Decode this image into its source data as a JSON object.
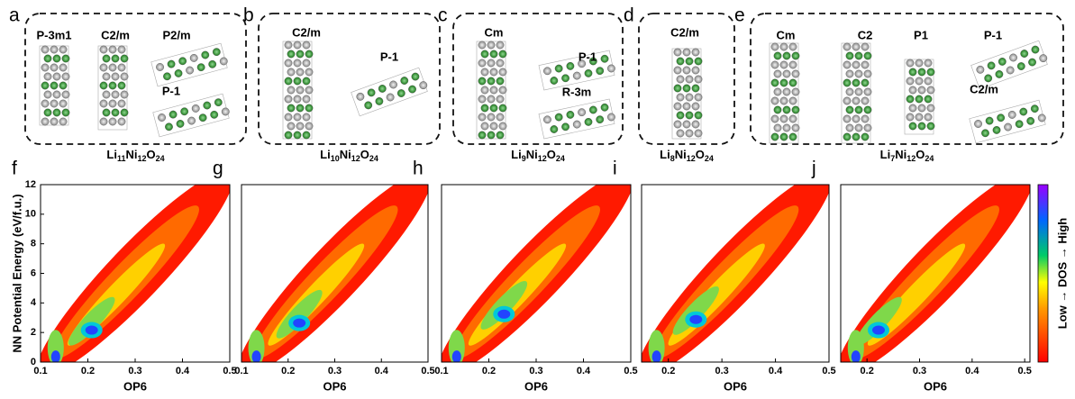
{
  "panels": [
    {
      "letter": "a",
      "structures": [
        "P-3m1",
        "C2/m",
        "P2/m",
        "P-1"
      ],
      "formula": [
        "Li",
        "11",
        "Ni",
        "12",
        "O",
        "24"
      ]
    },
    {
      "letter": "b",
      "structures": [
        "C2/m",
        "P-1"
      ],
      "formula": [
        "Li",
        "10",
        "Ni",
        "12",
        "O",
        "24"
      ]
    },
    {
      "letter": "c",
      "structures": [
        "Cm",
        "P-1",
        "R-3m"
      ],
      "formula": [
        "Li",
        "9",
        "Ni",
        "12",
        "O",
        "24"
      ]
    },
    {
      "letter": "d",
      "structures": [
        "C2/m"
      ],
      "formula": [
        "Li",
        "8",
        "Ni",
        "12",
        "O",
        "24"
      ]
    },
    {
      "letter": "e",
      "structures": [
        "Cm",
        "C2",
        "P1",
        "P-1",
        "C2/m"
      ],
      "formula": [
        "Li",
        "7",
        "Ni",
        "12",
        "O",
        "24"
      ]
    }
  ],
  "plots": [
    {
      "letter": "f",
      "xlim": [
        0.1,
        0.5
      ],
      "xticks": [
        0.1,
        0.2,
        0.3,
        0.4,
        0.5
      ]
    },
    {
      "letter": "g",
      "xlim": [
        0.1,
        0.5
      ],
      "xticks": [
        0.1,
        0.2,
        0.3,
        0.4,
        0.5
      ]
    },
    {
      "letter": "h",
      "xlim": [
        0.1,
        0.5
      ],
      "xticks": [
        0.1,
        0.2,
        0.3,
        0.4,
        0.5
      ]
    },
    {
      "letter": "i",
      "xlim": [
        0.15,
        0.5
      ],
      "xticks": [
        0.2,
        0.3,
        0.4,
        0.5
      ]
    },
    {
      "letter": "j",
      "xlim": [
        0.15,
        0.51
      ],
      "xticks": [
        0.2,
        0.3,
        0.4,
        0.5
      ]
    }
  ],
  "xlabel": "OP6",
  "ylabel": "NN Potential Energy (eV/f.u.)",
  "ylim": [
    0,
    12
  ],
  "yticks": [
    0,
    2,
    4,
    6,
    8,
    10,
    12
  ],
  "colorbar_label": "Low → DOS → High"
}
